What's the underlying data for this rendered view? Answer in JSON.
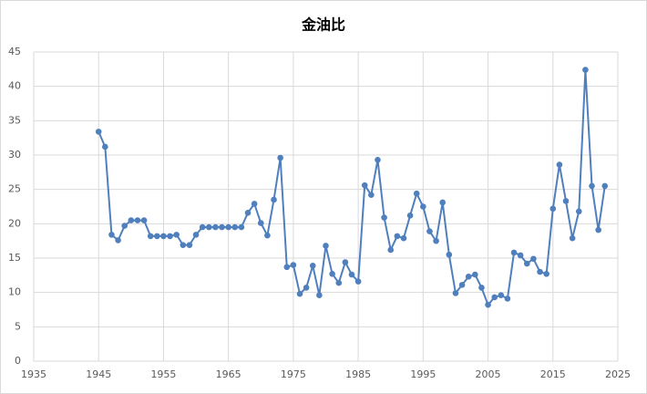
{
  "chart_data": {
    "type": "line",
    "title": "金油比",
    "x": [
      1945,
      1946,
      1947,
      1948,
      1949,
      1950,
      1951,
      1952,
      1953,
      1954,
      1955,
      1956,
      1957,
      1958,
      1959,
      1960,
      1961,
      1962,
      1963,
      1964,
      1965,
      1966,
      1967,
      1968,
      1969,
      1970,
      1971,
      1972,
      1973,
      1974,
      1975,
      1976,
      1977,
      1978,
      1979,
      1980,
      1981,
      1982,
      1983,
      1984,
      1985,
      1986,
      1987,
      1988,
      1989,
      1990,
      1991,
      1992,
      1993,
      1994,
      1995,
      1996,
      1997,
      1998,
      1999,
      2000,
      2001,
      2002,
      2003,
      2004,
      2005,
      2006,
      2007,
      2008,
      2009,
      2010,
      2011,
      2012,
      2013,
      2014,
      2015,
      2016,
      2017,
      2018,
      2019,
      2020,
      2021,
      2022,
      2023
    ],
    "values": [
      33.4,
      31.2,
      18.4,
      17.6,
      19.7,
      20.5,
      20.5,
      20.5,
      18.2,
      18.2,
      18.2,
      18.2,
      18.4,
      16.9,
      16.9,
      18.4,
      19.5,
      19.5,
      19.5,
      19.5,
      19.5,
      19.5,
      19.5,
      21.6,
      22.9,
      20.1,
      18.3,
      23.5,
      29.6,
      13.7,
      14.0,
      9.8,
      10.7,
      13.9,
      9.6,
      16.8,
      12.7,
      11.4,
      14.4,
      12.6,
      11.6,
      25.6,
      24.2,
      29.3,
      20.9,
      16.2,
      18.2,
      17.9,
      21.2,
      24.4,
      22.5,
      18.9,
      17.5,
      23.1,
      15.5,
      9.9,
      11.1,
      12.3,
      12.6,
      10.7,
      8.2,
      9.3,
      9.6,
      9.1,
      15.8,
      15.4,
      14.2,
      14.9,
      13.0,
      12.7,
      22.2,
      28.6,
      23.3,
      17.9,
      21.8,
      42.4,
      25.5,
      19.1,
      25.5
    ],
    "color": "#4f7fbd",
    "xlim": [
      1935,
      2025
    ],
    "xticks": [
      1935,
      1945,
      1955,
      1965,
      1975,
      1985,
      1995,
      2005,
      2015,
      2025
    ],
    "ylim": [
      0,
      45
    ],
    "yticks": [
      0,
      5,
      10,
      15,
      20,
      25,
      30,
      35,
      40,
      45
    ],
    "grid": true
  }
}
